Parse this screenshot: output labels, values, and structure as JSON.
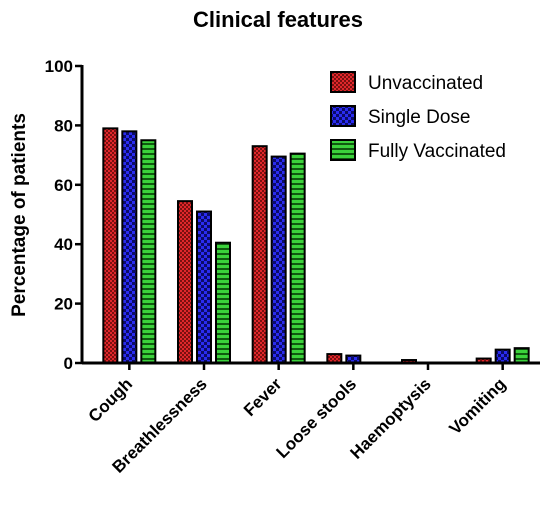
{
  "chart_data": {
    "type": "bar",
    "title": "Clinical features",
    "xlabel": "",
    "ylabel": "Percentage of patients",
    "ylim": [
      0,
      100
    ],
    "yticks": [
      0,
      20,
      40,
      60,
      80,
      100
    ],
    "categories": [
      "Cough",
      "Breathlessness",
      "Fever",
      "Loose stools",
      "Haemoptysis",
      "Vomiting"
    ],
    "series": [
      {
        "name": "Unvaccinated",
        "color": "#e0272b",
        "pattern": "dots",
        "values": [
          79,
          54.5,
          73,
          3,
          1,
          1.5
        ]
      },
      {
        "name": "Single Dose",
        "color": "#2a2cf0",
        "pattern": "checks",
        "values": [
          78,
          51,
          69.5,
          2.5,
          0,
          4.5
        ]
      },
      {
        "name": "Fully Vaccinated",
        "color": "#3bd13b",
        "pattern": "stripes",
        "values": [
          75,
          40.5,
          70.5,
          0,
          0,
          5
        ]
      }
    ],
    "legend_position": "top-right",
    "grid": false
  }
}
